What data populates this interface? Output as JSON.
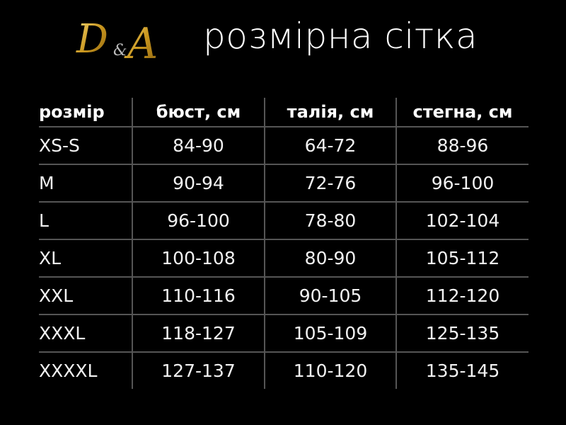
{
  "brand": {
    "logo_text": "D&A",
    "logo_color": "#d4a62a"
  },
  "title": "розмірна сітка",
  "table": {
    "headers": [
      "розмір",
      "бюст, см",
      "талія, см",
      "стегна, см"
    ],
    "rows": [
      [
        "XS-S",
        "84-90",
        "64-72",
        "88-96"
      ],
      [
        "M",
        "90-94",
        "72-76",
        "96-100"
      ],
      [
        "L",
        "96-100",
        "78-80",
        "102-104"
      ],
      [
        "XL",
        "100-108",
        "80-90",
        "105-112"
      ],
      [
        "XXL",
        "110-116",
        "90-105",
        "112-120"
      ],
      [
        "XXXL",
        "118-127",
        "105-109",
        "125-135"
      ],
      [
        "XXXXL",
        "127-137",
        "110-120",
        "135-145"
      ]
    ]
  }
}
